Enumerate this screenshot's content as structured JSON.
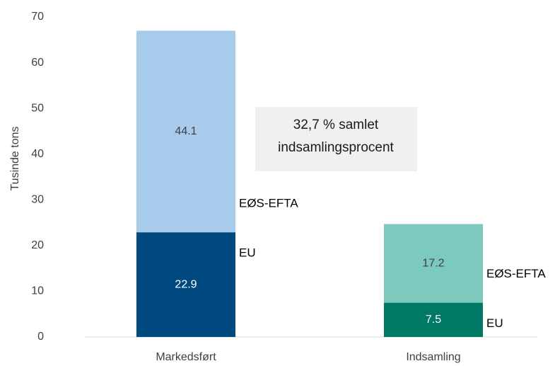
{
  "chart_data": {
    "type": "stacked_bar",
    "y_label": "Tusinde tons",
    "categories": [
      "Markedsført",
      "Indsamling"
    ],
    "series": [
      {
        "name": "EU",
        "colors": [
          "#004a80",
          "#007a66"
        ],
        "values": [
          22.9,
          7.5
        ]
      },
      {
        "name": "EØS-EFTA",
        "colors": [
          "#a9cbeb",
          "#7ccabd"
        ],
        "values": [
          44.1,
          17.2
        ]
      }
    ],
    "ylim": [
      0,
      70
    ],
    "yticks": [
      0,
      10,
      20,
      30,
      40,
      50,
      60,
      70
    ],
    "grid": false,
    "annotation": [
      "32,7 % samlet",
      "indsamlingsprocent"
    ]
  }
}
